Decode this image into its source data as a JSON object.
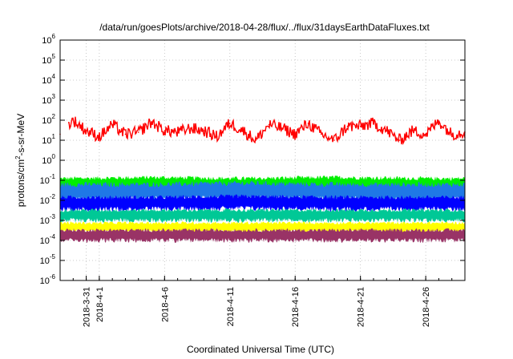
{
  "chart_data": {
    "type": "line",
    "title": "/data/run/goesPlots/archive/2018-04-28/flux/../flux/31daysEarthDataFluxes.txt",
    "xlabel": "Coordinated Universal Time (UTC)",
    "ylabel": "protons/cm2-s-sr-MeV",
    "yscale": "log",
    "ylim": [
      1e-06,
      1000000.0
    ],
    "xlim": [
      "2018-03-29",
      "2018-04-29"
    ],
    "grid": true,
    "y_ticks": [
      {
        "value": 1e-06,
        "base": "10",
        "exp": "-6"
      },
      {
        "value": 1e-05,
        "base": "10",
        "exp": "-5"
      },
      {
        "value": 0.0001,
        "base": "10",
        "exp": "-4"
      },
      {
        "value": 0.001,
        "base": "10",
        "exp": "-3"
      },
      {
        "value": 0.01,
        "base": "10",
        "exp": "-2"
      },
      {
        "value": 0.1,
        "base": "10",
        "exp": "-1"
      },
      {
        "value": 1,
        "base": "10",
        "exp": "0"
      },
      {
        "value": 10,
        "base": "10",
        "exp": "1"
      },
      {
        "value": 100,
        "base": "10",
        "exp": "2"
      },
      {
        "value": 1000,
        "base": "10",
        "exp": "3"
      },
      {
        "value": 10000,
        "base": "10",
        "exp": "4"
      },
      {
        "value": 100000,
        "base": "10",
        "exp": "5"
      },
      {
        "value": 1000000,
        "base": "10",
        "exp": "6"
      }
    ],
    "x_ticks": [
      {
        "date": "2018-03-31",
        "label": "2018-3-31"
      },
      {
        "date": "2018-04-01",
        "label": "2018-4-1"
      },
      {
        "date": "2018-04-06",
        "label": "2018-4-6"
      },
      {
        "date": "2018-04-11",
        "label": "2018-4-11"
      },
      {
        "date": "2018-04-16",
        "label": "2018-4-16"
      },
      {
        "date": "2018-04-21",
        "label": "2018-4-21"
      },
      {
        "date": "2018-04-26",
        "label": "2018-4-26"
      }
    ],
    "series": [
      {
        "color": "#ff0000",
        "x": [
          "2018-03-29",
          "2018-03-30",
          "2018-03-31",
          "2018-04-01",
          "2018-04-02",
          "2018-04-03",
          "2018-04-04",
          "2018-04-05",
          "2018-04-06",
          "2018-04-07",
          "2018-04-08",
          "2018-04-09",
          "2018-04-10",
          "2018-04-11",
          "2018-04-12",
          "2018-04-13",
          "2018-04-14",
          "2018-04-15",
          "2018-04-16",
          "2018-04-17",
          "2018-04-18",
          "2018-04-19",
          "2018-04-20",
          "2018-04-21",
          "2018-04-22",
          "2018-04-23",
          "2018-04-24",
          "2018-04-25",
          "2018-04-26",
          "2018-04-27",
          "2018-04-28",
          "2018-04-29"
        ],
        "y": [
          20,
          100,
          30,
          15,
          60,
          20,
          25,
          80,
          30,
          25,
          40,
          30,
          15,
          70,
          30,
          10,
          60,
          40,
          20,
          70,
          20,
          10,
          50,
          50,
          70,
          30,
          10,
          30,
          20,
          90,
          20,
          25
        ]
      },
      {
        "color": "#00ee00",
        "x": [
          "2018-03-29",
          "2018-04-05",
          "2018-04-12",
          "2018-04-19",
          "2018-04-26",
          "2018-04-29"
        ],
        "y": [
          0.07,
          0.08,
          0.07,
          0.08,
          0.07,
          0.07
        ]
      },
      {
        "color": "#1f78e6",
        "x": [
          "2018-03-29",
          "2018-04-05",
          "2018-04-12",
          "2018-04-19",
          "2018-04-26",
          "2018-04-29"
        ],
        "y": [
          0.03,
          0.03,
          0.035,
          0.03,
          0.03,
          0.03
        ]
      },
      {
        "color": "#0000ff",
        "x": [
          "2018-03-29",
          "2018-04-05",
          "2018-04-12",
          "2018-04-19",
          "2018-04-26",
          "2018-04-29"
        ],
        "y": [
          0.008,
          0.008,
          0.009,
          0.008,
          0.008,
          0.008
        ]
      },
      {
        "color": "#00c896",
        "x": [
          "2018-03-29",
          "2018-04-05",
          "2018-04-12",
          "2018-04-19",
          "2018-04-26",
          "2018-04-29"
        ],
        "y": [
          0.002,
          0.002,
          0.002,
          0.002,
          0.002,
          0.002
        ]
      },
      {
        "color": "#ffff00",
        "x": [
          "2018-03-29",
          "2018-04-05",
          "2018-04-12",
          "2018-04-19",
          "2018-04-26",
          "2018-04-29"
        ],
        "y": [
          0.0005,
          0.0005,
          0.0005,
          0.0005,
          0.0005,
          0.0005
        ]
      },
      {
        "color": "#993366",
        "x": [
          "2018-03-29",
          "2018-04-05",
          "2018-04-12",
          "2018-04-19",
          "2018-04-26",
          "2018-04-29"
        ],
        "y": [
          0.0002,
          0.0002,
          0.0002,
          0.0002,
          0.0002,
          0.0002
        ]
      }
    ]
  }
}
